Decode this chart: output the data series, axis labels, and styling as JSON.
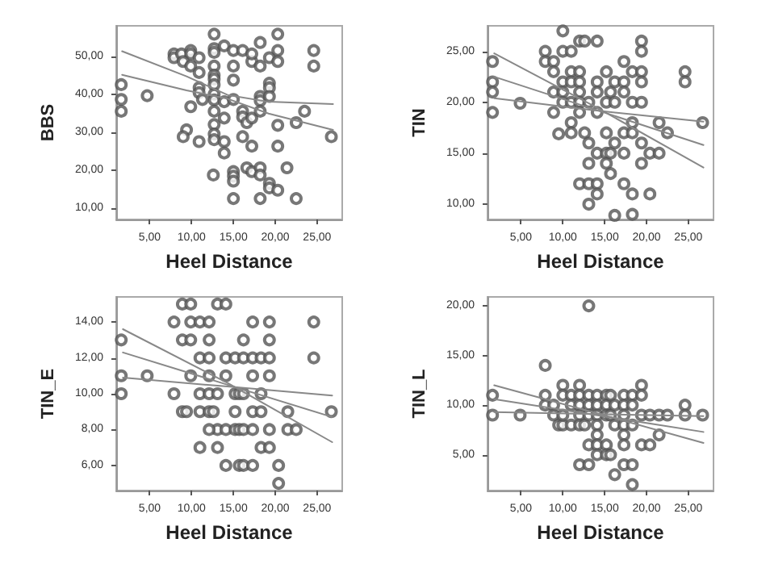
{
  "chart_data": [
    {
      "type": "scatter",
      "xlabel": "Heel Distance",
      "ylabel": "BBS",
      "xlim": [
        1,
        28
      ],
      "ylim": [
        7,
        58
      ],
      "grid": false,
      "marker": "circle",
      "line_style": "solid",
      "xticks": [
        {
          "value": 5,
          "label": "5,00"
        },
        {
          "value": 10,
          "label": "10,00"
        },
        {
          "value": 15,
          "label": "15,00"
        },
        {
          "value": 20,
          "label": "20,00"
        },
        {
          "value": 25,
          "label": "25,00"
        }
      ],
      "yticks": [
        {
          "value": 10,
          "label": "10,00"
        },
        {
          "value": 20,
          "label": "20,00"
        },
        {
          "value": 30,
          "label": "30,00"
        },
        {
          "value": 40,
          "label": "40,00"
        },
        {
          "value": 50,
          "label": "50,00"
        }
      ],
      "series": [
        {
          "color": "#555555",
          "x": [
            1.6,
            1.6,
            1.6,
            4.7,
            7.9,
            7.9,
            8.8,
            9.9,
            9.9,
            9,
            9.9,
            10.9,
            10.9,
            9.9,
            9.4,
            9,
            12.7,
            12.7,
            12.7,
            12.7,
            12.7,
            12.7,
            12.7,
            12.7,
            12.7,
            12.7,
            12.7,
            12.7,
            12.7,
            10.9,
            10.9,
            11.3,
            13.9,
            13.9,
            13.9,
            13.9,
            13.9,
            10.9,
            15,
            15,
            15,
            15,
            12.6,
            15,
            15,
            15,
            15,
            16.1,
            16.1,
            16.1,
            16.1,
            16.6,
            17.2,
            17.2,
            16.6,
            17.2,
            17.2,
            17.2,
            18.2,
            18.2,
            18.2,
            18.2,
            18.2,
            18.2,
            18.2,
            18.2,
            19.3,
            19.3,
            19.3,
            19.3,
            19.3,
            19.3,
            20.3,
            20.3,
            20.3,
            20.3,
            20.3,
            20.3,
            21.4,
            22.5,
            22.5,
            23.5,
            24.6,
            24.6,
            26.7
          ],
          "values": [
            42.5,
            38.6,
            35.5,
            39.6,
            50.6,
            49.6,
            50.6,
            51.5,
            50.6,
            48.6,
            47.4,
            49.6,
            45.7,
            36.7,
            30.6,
            28.8,
            52,
            51,
            47.4,
            45,
            44,
            42.5,
            40,
            38.5,
            35.5,
            32,
            29.5,
            28,
            55.8,
            41.7,
            40.4,
            38.6,
            52.7,
            38,
            33.7,
            27.5,
            24.5,
            27.5,
            51.5,
            47.4,
            43.7,
            38.6,
            18.7,
            19.6,
            18.4,
            17.1,
            12.5,
            51.5,
            35.5,
            34,
            28.8,
            32.5,
            33.7,
            26.3,
            20.6,
            19.6,
            48.6,
            50.6,
            53.6,
            47.4,
            39.4,
            38.3,
            35.5,
            20.6,
            18.7,
            12.5,
            49.6,
            42.9,
            41.7,
            39.4,
            16.5,
            15.3,
            55.8,
            51.5,
            48.6,
            31.8,
            26.3,
            14.7,
            20.6,
            12.5,
            32.5,
            35.5,
            51.5,
            47.4,
            28.8
          ]
        },
        {
          "type": "line",
          "marker": "none",
          "color": "#888888",
          "x": [
            1.7,
            9.4,
            14.3,
            19.2,
            26.9
          ],
          "values": [
            51.3,
            44.7,
            39.8,
            38,
            37.4
          ]
        },
        {
          "type": "line",
          "marker": "none",
          "color": "#888888",
          "x": [
            1.7,
            9.4,
            14.3,
            19.2,
            26.9
          ],
          "values": [
            45.1,
            41,
            38.8,
            34.9,
            30.6
          ]
        }
      ]
    },
    {
      "type": "scatter",
      "xlabel": "Heel Distance",
      "ylabel": "TIN",
      "xlim": [
        1,
        28
      ],
      "ylim": [
        8.5,
        27.5
      ],
      "grid": false,
      "marker": "circle",
      "line_style": "solid",
      "xticks": [
        {
          "value": 5,
          "label": "5,00"
        },
        {
          "value": 10,
          "label": "10,00"
        },
        {
          "value": 15,
          "label": "15,00"
        },
        {
          "value": 20,
          "label": "20,00"
        },
        {
          "value": 25,
          "label": "25,00"
        }
      ],
      "yticks": [
        {
          "value": 10,
          "label": "10,00"
        },
        {
          "value": 15,
          "label": "15,00"
        },
        {
          "value": 20,
          "label": "20,00"
        },
        {
          "value": 25,
          "label": "25,00"
        }
      ],
      "series": [
        {
          "color": "#555555",
          "x": [
            1.6,
            1.6,
            1.6,
            1.6,
            4.9,
            7.9,
            7.9,
            8.9,
            8.9,
            8.9,
            8.9,
            10,
            10,
            10,
            9.5,
            10,
            10,
            11,
            11,
            11,
            11,
            11,
            11,
            12,
            12,
            12,
            12,
            12,
            12,
            12,
            12.6,
            12.6,
            13.1,
            13.1,
            13.1,
            13.1,
            13.1,
            14.1,
            14.1,
            14.1,
            14.1,
            14.1,
            14.1,
            14.1,
            15.2,
            15.2,
            15.2,
            15.2,
            15.2,
            15.7,
            15.7,
            15.7,
            16.2,
            16.2,
            16.2,
            16.2,
            17.3,
            17.3,
            17.3,
            17.3,
            17.3,
            17.3,
            18.3,
            18.3,
            18.3,
            18.3,
            18.3,
            18.3,
            19.4,
            19.4,
            19.4,
            19.4,
            19.4,
            19.4,
            19.4,
            20.4,
            20.4,
            21.5,
            21.5,
            22.5,
            24.6,
            24.6,
            26.7
          ],
          "values": [
            24,
            22,
            21,
            19,
            19.9,
            25,
            24,
            24,
            23,
            21,
            19,
            27,
            25,
            22,
            16.9,
            21,
            20,
            25,
            23,
            22,
            20,
            18,
            17,
            26,
            23,
            22,
            21,
            20,
            19,
            12,
            26,
            17,
            20,
            16,
            14,
            12,
            10,
            26,
            22,
            21,
            19,
            15,
            12,
            11,
            23,
            20,
            17,
            15,
            14,
            21,
            15,
            13,
            22,
            20,
            16,
            8.9,
            24,
            22,
            21,
            17,
            15,
            12,
            23,
            20,
            18,
            17,
            11,
            9,
            26,
            25,
            23,
            22,
            20,
            16,
            14,
            15,
            11,
            18,
            15,
            17,
            23,
            22,
            18
          ]
        },
        {
          "type": "line",
          "marker": "none",
          "color": "#888888",
          "x": [
            1.8,
            13.8,
            26.8
          ],
          "values": [
            24.8,
            19.6,
            13.6
          ]
        },
        {
          "type": "line",
          "marker": "none",
          "color": "#888888",
          "x": [
            1.8,
            13.8,
            26.8
          ],
          "values": [
            22.5,
            19.3,
            15.8
          ]
        },
        {
          "type": "line",
          "marker": "none",
          "color": "#888888",
          "x": [
            1.8,
            13.8,
            26.8
          ],
          "values": [
            20.4,
            19.2,
            18.1
          ]
        }
      ]
    },
    {
      "type": "scatter",
      "xlabel": "Heel Distance",
      "ylabel": "TIN_E",
      "xlim": [
        1,
        28
      ],
      "ylim": [
        4.6,
        15.4
      ],
      "grid": false,
      "marker": "circle",
      "line_style": "solid",
      "xticks": [
        {
          "value": 5,
          "label": "5,00"
        },
        {
          "value": 10,
          "label": "10,00"
        },
        {
          "value": 15,
          "label": "15,00"
        },
        {
          "value": 20,
          "label": "20,00"
        },
        {
          "value": 25,
          "label": "25,00"
        }
      ],
      "yticks": [
        {
          "value": 6,
          "label": "6,00"
        },
        {
          "value": 8,
          "label": "8,00"
        },
        {
          "value": 10,
          "label": "10,00"
        },
        {
          "value": 12,
          "label": "12,00"
        },
        {
          "value": 14,
          "label": "14,00"
        }
      ],
      "series": [
        {
          "color": "#555555",
          "x": [
            1.6,
            1.6,
            1.6,
            4.7,
            7.9,
            7.9,
            8.9,
            9.9,
            8.9,
            9.9,
            9.9,
            8.9,
            9.4,
            9.9,
            11,
            12.1,
            12.1,
            11,
            12.1,
            11,
            12.1,
            11,
            12.1,
            12.6,
            11,
            12.1,
            13.1,
            14.1,
            13.1,
            13.1,
            12.1,
            13.1,
            14.1,
            14.1,
            14.1,
            14.1,
            15.2,
            15.2,
            15.2,
            15.2,
            15.7,
            15.7,
            16.2,
            16.2,
            16.2,
            16.2,
            15.7,
            16.2,
            17.3,
            17.3,
            17.3,
            17.3,
            17.3,
            17.3,
            18.3,
            18.3,
            18.3,
            18.3,
            19.3,
            19.3,
            19.3,
            19.3,
            19.3,
            19.3,
            20.4,
            20.4,
            21.5,
            21.5,
            22.5,
            24.6,
            24.6,
            26.7
          ],
          "values": [
            13,
            11,
            10,
            11,
            14,
            10,
            15,
            15,
            13,
            13,
            14,
            9,
            9,
            11,
            14,
            14,
            13,
            12,
            12,
            10,
            10,
            9,
            9,
            9,
            7,
            11,
            15,
            15,
            10,
            8,
            8,
            7,
            12,
            11,
            8,
            6,
            12,
            10,
            9,
            8,
            10,
            8,
            13,
            12,
            10,
            8,
            6,
            6,
            14,
            12,
            11,
            9,
            8,
            6,
            12,
            10,
            9,
            7,
            14,
            13,
            12,
            11,
            8,
            7,
            6,
            5,
            9,
            8,
            8,
            14,
            12,
            9
          ]
        },
        {
          "type": "line",
          "marker": "none",
          "color": "#888888",
          "x": [
            1.8,
            14.3,
            26.8
          ],
          "values": [
            13.6,
            10.6,
            7.3
          ]
        },
        {
          "type": "line",
          "marker": "none",
          "color": "#888888",
          "x": [
            1.8,
            14.3,
            26.8
          ],
          "values": [
            12.3,
            10.5,
            8.7
          ]
        },
        {
          "type": "line",
          "marker": "none",
          "color": "#888888",
          "x": [
            1.8,
            14.3,
            26.8
          ],
          "values": [
            10.9,
            10.4,
            9.9
          ]
        }
      ]
    },
    {
      "type": "scatter",
      "xlabel": "Heel Distance",
      "ylabel": "TIN_L",
      "xlim": [
        1,
        28
      ],
      "ylim": [
        1.4,
        20.9
      ],
      "grid": false,
      "marker": "circle",
      "line_style": "solid",
      "xticks": [
        {
          "value": 5,
          "label": "5,00"
        },
        {
          "value": 10,
          "label": "10,00"
        },
        {
          "value": 15,
          "label": "15,00"
        },
        {
          "value": 20,
          "label": "20,00"
        },
        {
          "value": 25,
          "label": "25,00"
        }
      ],
      "yticks": [
        {
          "value": 5,
          "label": "5,00"
        },
        {
          "value": 10,
          "label": "10,00"
        },
        {
          "value": 15,
          "label": "15,00"
        },
        {
          "value": 20,
          "label": "20,00"
        }
      ],
      "series": [
        {
          "color": "#555555",
          "x": [
            1.6,
            1.6,
            4.9,
            7.9,
            7.9,
            7.9,
            8.9,
            8.9,
            9.5,
            10,
            10,
            10,
            10,
            11,
            11,
            11,
            12,
            12,
            12,
            12,
            12,
            12.6,
            12,
            13.1,
            13.1,
            13.1,
            13.1,
            13.1,
            13.1,
            14.1,
            14.1,
            14.1,
            14.1,
            14.1,
            14.1,
            14.1,
            15.2,
            15.2,
            15.2,
            15.2,
            15.2,
            15.7,
            15.7,
            15.7,
            16.2,
            16.2,
            16.2,
            17.3,
            17.3,
            17.3,
            17.3,
            17.3,
            17.3,
            17.3,
            18.3,
            18.3,
            18.3,
            18.3,
            18.3,
            19.4,
            19.4,
            19.4,
            19.4,
            20.4,
            20.4,
            21.5,
            21.5,
            22.5,
            24.6,
            24.6,
            26.7
          ],
          "values": [
            11,
            9,
            9,
            14,
            11,
            10,
            10,
            9,
            8,
            8,
            9,
            12,
            11,
            11,
            10,
            8,
            12,
            11,
            10,
            9,
            8,
            8,
            4,
            20,
            11,
            10,
            9,
            6,
            4,
            11,
            10,
            9,
            8,
            7,
            6,
            5,
            11,
            10,
            9,
            6,
            5,
            11,
            9,
            5,
            10,
            8,
            3,
            11,
            10,
            9,
            8,
            7,
            6,
            4,
            11,
            10,
            8,
            4,
            2,
            12,
            11,
            9,
            6,
            9,
            6,
            9,
            7,
            9,
            10,
            9,
            9
          ]
        },
        {
          "type": "line",
          "marker": "none",
          "color": "#888888",
          "x": [
            1.8,
            14,
            26.8
          ],
          "values": [
            12,
            9.2,
            6.2
          ]
        },
        {
          "type": "line",
          "marker": "none",
          "color": "#888888",
          "x": [
            1.8,
            14,
            26.8
          ],
          "values": [
            10.6,
            9,
            7.3
          ]
        },
        {
          "type": "line",
          "marker": "none",
          "color": "#888888",
          "x": [
            1.8,
            14,
            26.8
          ],
          "values": [
            9.3,
            9.1,
            8.9
          ]
        }
      ]
    }
  ]
}
